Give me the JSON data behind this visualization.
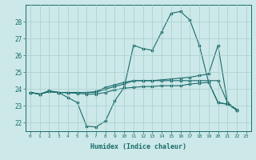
{
  "xlabel": "Humidex (Indice chaleur)",
  "bg_color": "#cce8e8",
  "grid_color": "#aacece",
  "line_color": "#1a6b6b",
  "xlim": [
    -0.5,
    23.5
  ],
  "ylim": [
    21.5,
    29.0
  ],
  "yticks": [
    22,
    23,
    24,
    25,
    26,
    27,
    28
  ],
  "xticks": [
    0,
    1,
    2,
    3,
    4,
    5,
    6,
    7,
    8,
    9,
    10,
    11,
    12,
    13,
    14,
    15,
    16,
    17,
    18,
    19,
    20,
    21,
    22,
    23
  ],
  "lines": [
    {
      "x": [
        0,
        1,
        2,
        3,
        4,
        5,
        6,
        7,
        8,
        9,
        10,
        11,
        12,
        13,
        14,
        15,
        16,
        17,
        18,
        19,
        20,
        21,
        22
      ],
      "y": [
        23.8,
        23.7,
        23.9,
        23.8,
        23.5,
        23.2,
        21.8,
        21.75,
        22.1,
        23.3,
        24.1,
        26.6,
        26.4,
        26.3,
        27.4,
        28.5,
        28.6,
        28.1,
        26.6,
        24.4,
        23.2,
        23.1,
        22.8
      ]
    },
    {
      "x": [
        0,
        1,
        2,
        3,
        4,
        5,
        6,
        7,
        8,
        9,
        10,
        11,
        12,
        13,
        14,
        15,
        16,
        17,
        18,
        19,
        20,
        21,
        22
      ],
      "y": [
        23.8,
        23.7,
        23.85,
        23.8,
        23.8,
        23.8,
        23.8,
        23.8,
        24.0,
        24.15,
        24.3,
        24.5,
        24.5,
        24.5,
        24.55,
        24.6,
        24.65,
        24.7,
        24.8,
        24.9,
        26.6,
        23.2,
        22.75
      ]
    },
    {
      "x": [
        0,
        1,
        2,
        3,
        4,
        5,
        6,
        7,
        8,
        9,
        10,
        11,
        12,
        13,
        14,
        15,
        16,
        17,
        18,
        19,
        20,
        21,
        22
      ],
      "y": [
        23.8,
        23.7,
        23.85,
        23.8,
        23.8,
        23.8,
        23.8,
        23.85,
        24.1,
        24.25,
        24.4,
        24.5,
        24.5,
        24.5,
        24.5,
        24.5,
        24.5,
        24.5,
        24.5,
        24.5,
        24.5,
        23.2,
        22.75
      ]
    },
    {
      "x": [
        0,
        1,
        2,
        3,
        4,
        5,
        6,
        7,
        8,
        9,
        10,
        11,
        12,
        13,
        14,
        15,
        16,
        17,
        18,
        19,
        20,
        21,
        22
      ],
      "y": [
        23.8,
        23.7,
        23.85,
        23.8,
        23.78,
        23.75,
        23.7,
        23.7,
        23.8,
        23.95,
        24.05,
        24.1,
        24.15,
        24.15,
        24.2,
        24.2,
        24.2,
        24.3,
        24.35,
        24.4,
        23.2,
        23.1,
        22.75
      ]
    }
  ]
}
